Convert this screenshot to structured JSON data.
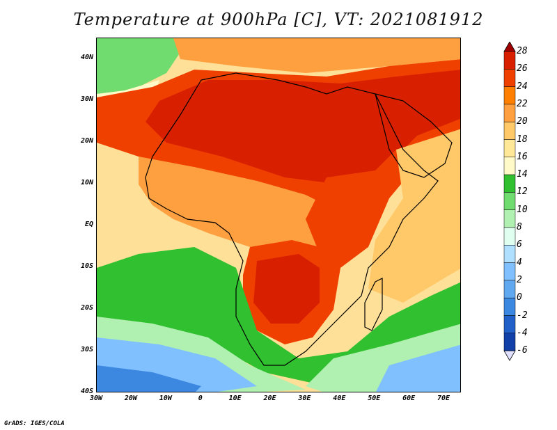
{
  "title": "Temperature at 900hPa [C], VT: 2021081912",
  "credit": "GrADS: IGES/COLA",
  "map": {
    "lon_range": [
      -30,
      75
    ],
    "lat_range": [
      -40,
      45
    ],
    "lat_ticks": [
      {
        "value": 40,
        "label": "40N"
      },
      {
        "value": 30,
        "label": "30N"
      },
      {
        "value": 20,
        "label": "20N"
      },
      {
        "value": 10,
        "label": "10N"
      },
      {
        "value": 0,
        "label": "EQ"
      },
      {
        "value": -10,
        "label": "10S"
      },
      {
        "value": -20,
        "label": "20S"
      },
      {
        "value": -30,
        "label": "30S"
      },
      {
        "value": -40,
        "label": "40S"
      }
    ],
    "lon_ticks": [
      {
        "value": -30,
        "label": "30W"
      },
      {
        "value": -20,
        "label": "20W"
      },
      {
        "value": -10,
        "label": "10W"
      },
      {
        "value": 0,
        "label": "0"
      },
      {
        "value": 10,
        "label": "10E"
      },
      {
        "value": 20,
        "label": "20E"
      },
      {
        "value": 30,
        "label": "30E"
      },
      {
        "value": 40,
        "label": "40E"
      },
      {
        "value": 50,
        "label": "50E"
      },
      {
        "value": 60,
        "label": "60E"
      },
      {
        "value": 70,
        "label": "70E"
      }
    ],
    "temperature_regions": [
      {
        "name": "background-ocean",
        "value": 18
      },
      {
        "name": "south-ocean-green",
        "value": 13
      },
      {
        "name": "south-ocean-light",
        "value": 10
      },
      {
        "name": "south-ocean-blue",
        "value": 6
      },
      {
        "name": "far-south-blue",
        "value": 3
      },
      {
        "name": "north-africa-hot",
        "value": 27
      },
      {
        "name": "arabia-hot",
        "value": 27
      },
      {
        "name": "mediterranean-warm",
        "value": 21
      },
      {
        "name": "sahel-warm",
        "value": 23
      },
      {
        "name": "southern-africa-hot",
        "value": 26
      },
      {
        "name": "east-africa-hot",
        "value": 26
      },
      {
        "name": "indian-ocean-warm",
        "value": 20
      },
      {
        "name": "atlantic-cool-band",
        "value": 16
      }
    ]
  },
  "colorbar": {
    "levels": [
      "28",
      "26",
      "24",
      "22",
      "20",
      "18",
      "16",
      "14",
      "12",
      "10",
      "8",
      "6",
      "4",
      "2",
      "0",
      "-2",
      "-4",
      "-6"
    ],
    "colors": [
      "#a00000",
      "#d82000",
      "#f04000",
      "#ff8000",
      "#ffa040",
      "#ffc868",
      "#ffe898",
      "#fffac8",
      "#30c030",
      "#70dc70",
      "#b0f0b0",
      "#e0fff0",
      "#b0e0ff",
      "#80c0ff",
      "#60a8f0",
      "#3c88e0",
      "#2060c8",
      "#1040a8",
      "#082078"
    ]
  }
}
